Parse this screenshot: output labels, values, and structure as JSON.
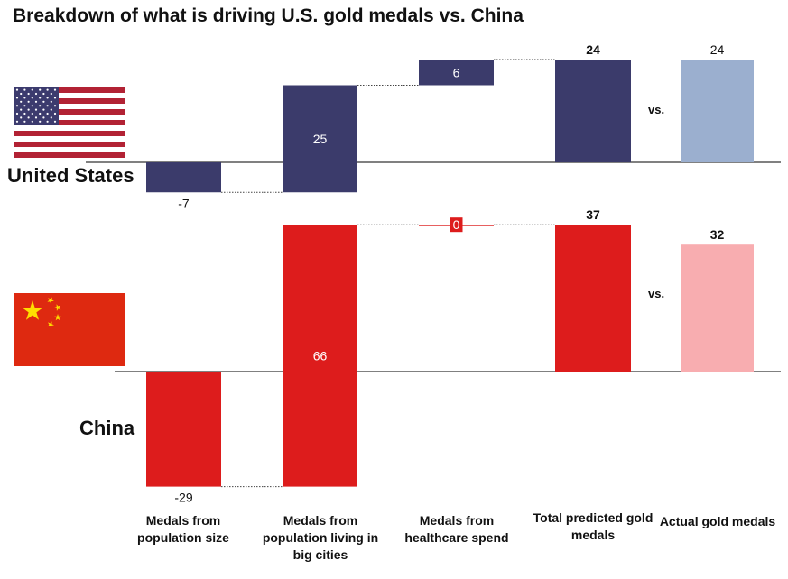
{
  "title": "Breakdown of what is driving U.S. gold medals vs. China",
  "vs_text": "vs.",
  "countries": {
    "us": {
      "name": "United States"
    },
    "china": {
      "name": "China"
    }
  },
  "categories": [
    "Medals from population size",
    "Medals from population living in big cities",
    "Medals from healthcare spend",
    "Total predicted gold medals",
    "Actual gold medals"
  ],
  "colors": {
    "us_bar": "#3b3b6b",
    "us_actual": "#9bafcf",
    "china_bar": "#dd1c1c",
    "china_actual": "#f8adb0"
  },
  "chart_data": [
    {
      "type": "bar",
      "title": "United States",
      "categories": [
        "Medals from population size",
        "Medals from population living in big cities",
        "Medals from healthcare spend",
        "Total predicted gold medals",
        "Actual gold medals"
      ],
      "values": [
        -7,
        25,
        6,
        24,
        24
      ],
      "labels": [
        "-7",
        "25",
        "6",
        "24",
        "24"
      ]
    },
    {
      "type": "bar",
      "title": "China",
      "categories": [
        "Medals from population size",
        "Medals from population living in big cities",
        "Medals from healthcare spend",
        "Total predicted gold medals",
        "Actual gold medals"
      ],
      "values": [
        -29,
        66,
        0,
        37,
        32
      ],
      "labels": [
        "-29",
        "66",
        "0",
        "37",
        "32"
      ]
    }
  ]
}
